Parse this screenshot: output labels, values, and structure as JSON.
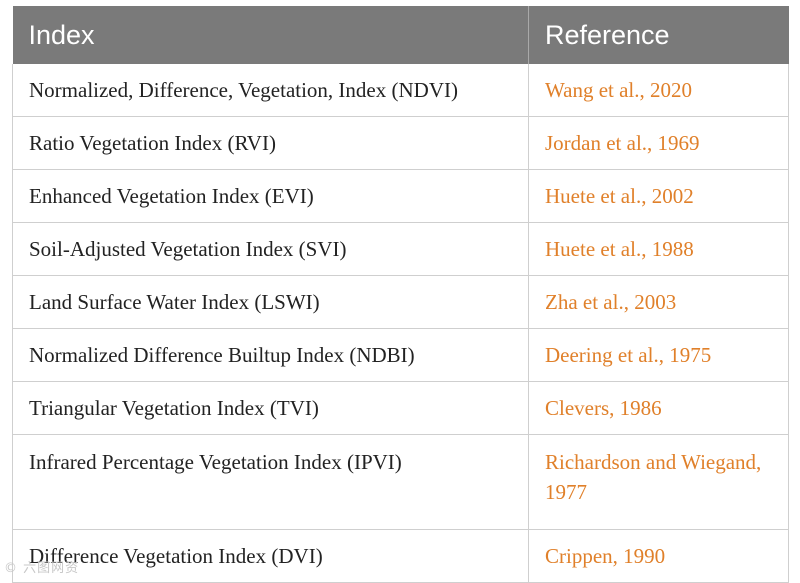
{
  "table": {
    "headers": {
      "index": "Index",
      "reference": "Reference"
    },
    "rows": [
      {
        "index": "Normalized, Difference, Vegetation, Index (NDVI)",
        "reference": "Wang et al., 2020"
      },
      {
        "index": "Ratio Vegetation Index (RVI)",
        "reference": "Jordan et al., 1969"
      },
      {
        "index": "Enhanced Vegetation Index (EVI)",
        "reference": "Huete et al., 2002"
      },
      {
        "index": "Soil-Adjusted Vegetation Index (SVI)",
        "reference": "Huete et al., 1988"
      },
      {
        "index": "Land Surface Water Index (LSWI)",
        "reference": "Zha et al., 2003"
      },
      {
        "index": "Normalized Difference Builtup Index (NDBI)",
        "reference": "Deering et al., 1975"
      },
      {
        "index": "Triangular Vegetation Index (TVI)",
        "reference": "Clevers, 1986"
      },
      {
        "index": "Infrared Percentage Vegetation Index (IPVI)",
        "reference": "Richardson and Wiegand, 1977"
      },
      {
        "index": "Difference Vegetation Index (DVI)",
        "reference": "Crippen, 1990"
      }
    ]
  },
  "watermark": "© 六图网资"
}
